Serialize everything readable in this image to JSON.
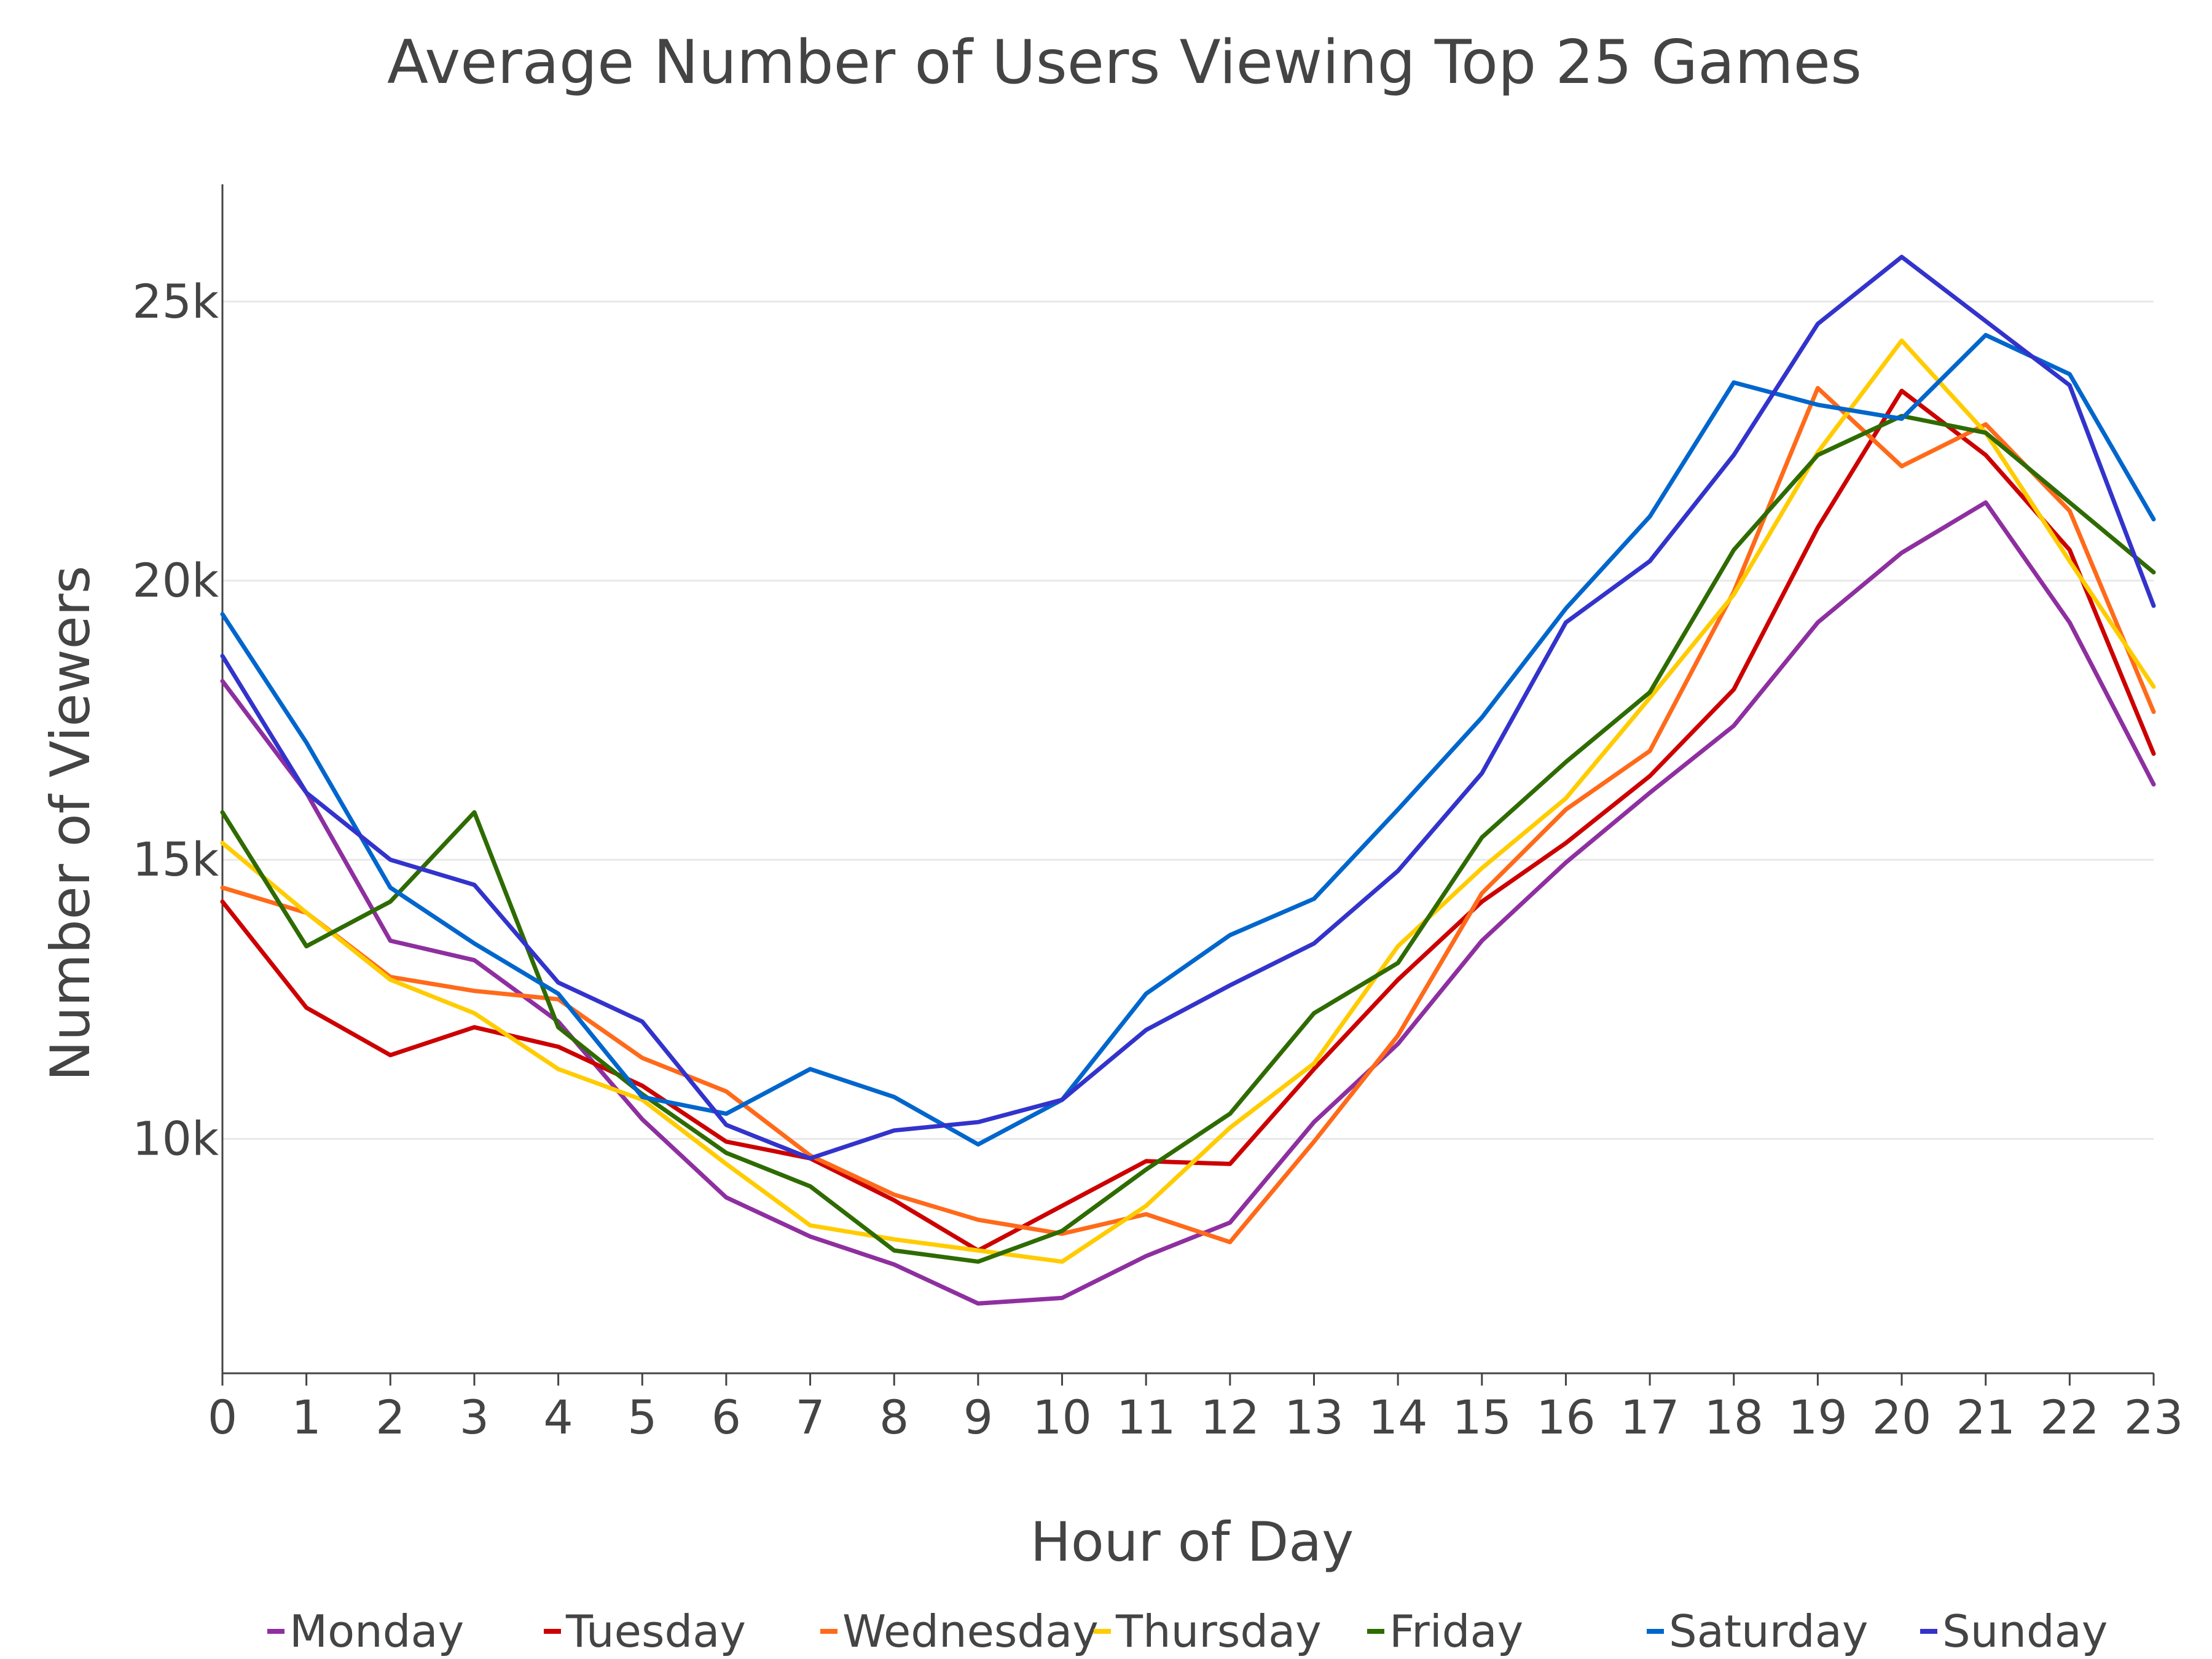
{
  "chart_data": {
    "type": "line",
    "title": "Average Number of Users Viewing Top 25 Games",
    "xlabel": "Hour of Day",
    "ylabel": "Number of Viewers",
    "x": [
      0,
      1,
      2,
      3,
      4,
      5,
      6,
      7,
      8,
      9,
      10,
      11,
      12,
      13,
      14,
      15,
      16,
      17,
      18,
      19,
      20,
      21,
      22,
      23
    ],
    "xlim": [
      0,
      23
    ],
    "ylim": [
      5800,
      27100
    ],
    "yticks": [
      10000,
      15000,
      20000,
      25000
    ],
    "ytick_labels": [
      "10k",
      "15k",
      "20k",
      "25k"
    ],
    "grid": "horizontal",
    "legend_position": "bottom",
    "series": [
      {
        "name": "Monday",
        "color": "#8E2FA0",
        "values": [
          18200,
          16200,
          13550,
          13200,
          12100,
          10350,
          8950,
          8250,
          7750,
          7050,
          7150,
          7900,
          8500,
          10300,
          11700,
          13550,
          14950,
          16200,
          17400,
          19250,
          20500,
          21400,
          19250,
          16350
        ]
      },
      {
        "name": "Tuesday",
        "color": "#CC0000",
        "values": [
          14250,
          12350,
          11500,
          12000,
          11650,
          10950,
          9950,
          9650,
          8900,
          8000,
          8800,
          9600,
          9550,
          11250,
          12850,
          14250,
          15300,
          16500,
          18050,
          20950,
          23400,
          22250,
          20550,
          16900
        ]
      },
      {
        "name": "Wednesday",
        "color": "#FF6A1A",
        "values": [
          14500,
          14050,
          12900,
          12650,
          12500,
          11450,
          10850,
          9700,
          9000,
          8550,
          8300,
          8650,
          8150,
          9950,
          11850,
          14400,
          15900,
          16950,
          19800,
          23450,
          22050,
          22800,
          21250,
          17650
        ]
      },
      {
        "name": "Thursday",
        "color": "#FFCC00",
        "values": [
          15300,
          14050,
          12850,
          12250,
          11250,
          10700,
          9550,
          8450,
          8200,
          8000,
          7800,
          8800,
          10200,
          11350,
          13450,
          14850,
          16100,
          17900,
          19750,
          22300,
          24300,
          22650,
          20350,
          18100
        ]
      },
      {
        "name": "Friday",
        "color": "#2E6B00",
        "values": [
          15850,
          13450,
          14250,
          15850,
          12000,
          10800,
          9750,
          9150,
          8000,
          7800,
          8350,
          9450,
          10450,
          12250,
          13150,
          15400,
          16750,
          18000,
          20550,
          22250,
          22950,
          22650,
          21400,
          20150
        ]
      },
      {
        "name": "Saturday",
        "color": "#0066CC",
        "values": [
          19400,
          17100,
          14500,
          13500,
          12600,
          10750,
          10450,
          11250,
          10750,
          9900,
          10700,
          12600,
          13650,
          14300,
          15900,
          17550,
          19500,
          21150,
          23550,
          23150,
          22900,
          24400,
          23700,
          21100
        ]
      },
      {
        "name": "Sunday",
        "color": "#3333CC",
        "values": [
          18650,
          16200,
          15000,
          14550,
          12800,
          12100,
          10250,
          9650,
          10150,
          10300,
          10700,
          11950,
          12750,
          13500,
          14800,
          16550,
          19250,
          20350,
          22250,
          24600,
          25800,
          24650,
          23500,
          19550
        ]
      }
    ]
  }
}
